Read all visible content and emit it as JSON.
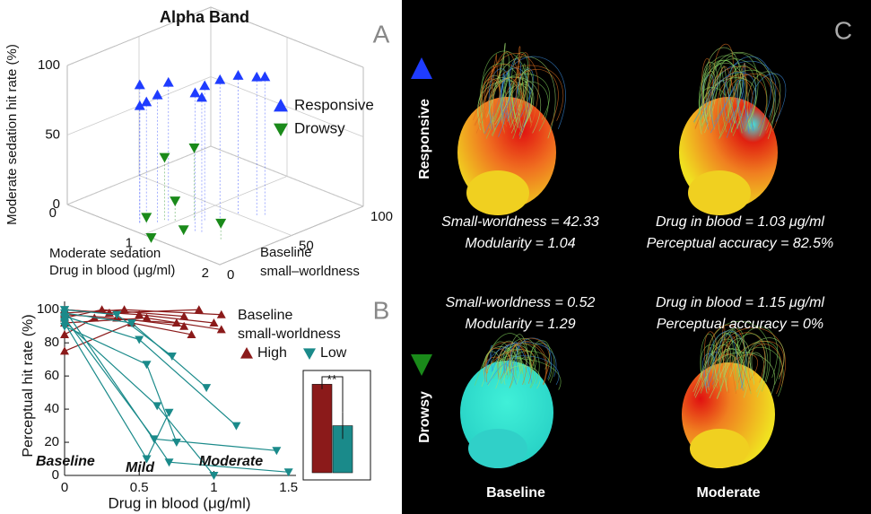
{
  "chart_data": [
    {
      "type": "scatter3d",
      "panel": "A",
      "title": "Alpha Band",
      "xlabel": [
        "Moderate sedation",
        "Drug in blood (μg/ml)"
      ],
      "ylabel": [
        "Baseline",
        "small–worldness"
      ],
      "zlabel": "Moderate sedation hit rate (%)",
      "xlim": [
        0,
        2
      ],
      "xticks": [
        0,
        1,
        2
      ],
      "ylim": [
        0,
        100
      ],
      "yticks": [
        0,
        50,
        100
      ],
      "zlim": [
        0,
        100
      ],
      "zticks": [
        0,
        50,
        100
      ],
      "grid": true,
      "series": [
        {
          "name": "Responsive",
          "color": "#1f3cff",
          "marker": "triangle-up",
          "x": [
            0.8,
            0.8,
            0.9,
            0.85,
            0.95,
            1.3,
            1.35,
            1.25,
            1.3,
            1.45,
            1.5,
            1.2
          ],
          "y": [
            8,
            8,
            15,
            10,
            20,
            20,
            22,
            40,
            50,
            55,
            58,
            32
          ],
          "z": [
            100,
            85,
            92,
            88,
            100,
            100,
            97,
            100,
            100,
            100,
            100,
            98
          ]
        },
        {
          "name": "Drowsy",
          "color": "#1a8a1a",
          "marker": "triangle-down",
          "x": [
            0.9,
            1.1,
            0.85,
            1.0,
            1.3,
            1.6,
            1.1
          ],
          "y": [
            20,
            30,
            10,
            22,
            12,
            22,
            0
          ],
          "z": [
            45,
            52,
            5,
            15,
            5,
            12,
            0
          ]
        }
      ]
    },
    {
      "type": "line",
      "panel": "B",
      "xlabel": "Drug in blood (μg/ml)",
      "ylabel": "Perceptual hit rate (%)",
      "xlim": [
        0,
        1.55
      ],
      "xticks": [
        0,
        0.5,
        1,
        1.5
      ],
      "ylim": [
        0,
        105
      ],
      "yticks": [
        0,
        20,
        40,
        60,
        80,
        100
      ],
      "legend_title": [
        "Baseline",
        "small-worldness"
      ],
      "annotations": [
        "Baseline",
        "Mild",
        "Moderate"
      ],
      "series": [
        {
          "name": "High",
          "color": "#8b1a1a",
          "marker": "triangle-up",
          "lines": [
            {
              "x": [
                0,
                0.3,
                0.9
              ],
              "values": [
                100,
                98,
                100
              ]
            },
            {
              "x": [
                0,
                0.4,
                1.05
              ],
              "values": [
                98,
                100,
                97
              ]
            },
            {
              "x": [
                0,
                0.25,
                0.8
              ],
              "values": [
                95,
                100,
                96
              ]
            },
            {
              "x": [
                0,
                0.5,
                1.0
              ],
              "values": [
                100,
                97,
                92
              ]
            },
            {
              "x": [
                0,
                0.35,
                0.8
              ],
              "values": [
                97,
                95,
                90
              ]
            },
            {
              "x": [
                0,
                0.55,
                1.05
              ],
              "values": [
                92,
                95,
                88
              ]
            },
            {
              "x": [
                0,
                0.2,
                0.75
              ],
              "values": [
                85,
                95,
                92
              ]
            },
            {
              "x": [
                0,
                0.45,
                0.85
              ],
              "values": [
                75,
                92,
                85
              ]
            }
          ]
        },
        {
          "name": "Low",
          "color": "#1a8a8a",
          "marker": "triangle-down",
          "lines": [
            {
              "x": [
                0,
                0.35,
                0.72
              ],
              "values": [
                100,
                97,
                72
              ]
            },
            {
              "x": [
                0,
                0.45,
                0.95
              ],
              "values": [
                98,
                92,
                53
              ]
            },
            {
              "x": [
                0,
                0.5,
                1.15
              ],
              "values": [
                96,
                82,
                30
              ]
            },
            {
              "x": [
                0,
                0.6,
                1.42
              ],
              "values": [
                95,
                22,
                15
              ]
            },
            {
              "x": [
                0,
                0.62,
                1.0
              ],
              "values": [
                93,
                42,
                0
              ]
            },
            {
              "x": [
                0,
                0.55,
                0.7
              ],
              "values": [
                92,
                10,
                38
              ]
            },
            {
              "x": [
                0,
                0.7,
                1.5
              ],
              "values": [
                100,
                8,
                2
              ]
            },
            {
              "x": [
                0,
                0.55,
                0.75
              ],
              "values": [
                90,
                67,
                20
              ]
            }
          ]
        }
      ],
      "inset": {
        "type": "bar",
        "values": [
          55,
          30
        ],
        "errors": [
          3,
          8
        ],
        "colors": [
          "#8b1a1a",
          "#1a8a8a"
        ],
        "annotation": "**"
      }
    }
  ],
  "panel_c": {
    "label": "C",
    "rows": [
      "Responsive",
      "Drowsy"
    ],
    "columns": [
      "Baseline",
      "Moderate"
    ],
    "captions": [
      [
        "Small-worldness = 42.33",
        "Modularity = 1.04"
      ],
      [
        "Drug in blood = 1.03 μg/ml",
        "Perceptual accuracy = 82.5%"
      ],
      [
        "Small-worldness = 0.52",
        "Modularity = 1.29"
      ],
      [
        "Drug in blood = 1.15 μg/ml",
        "Perceptual accuracy = 0%"
      ]
    ]
  }
}
